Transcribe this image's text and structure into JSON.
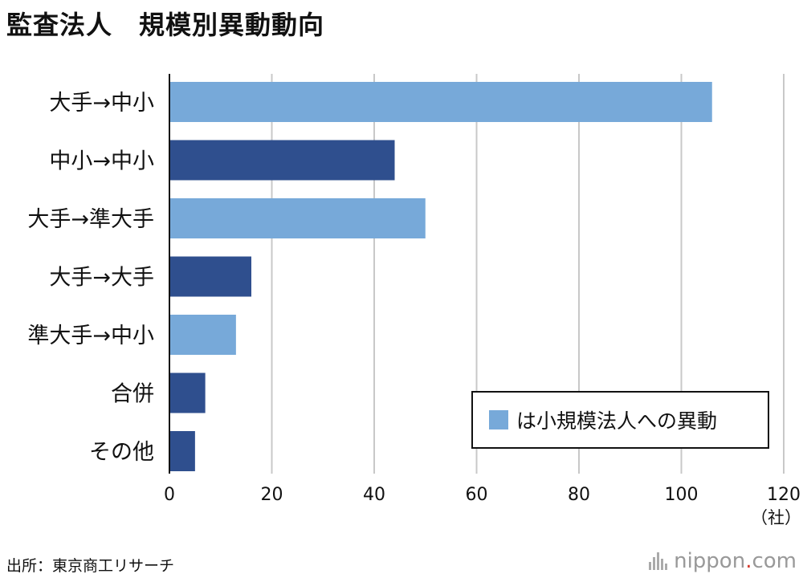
{
  "chart_data": {
    "type": "bar",
    "orientation": "horizontal",
    "title": "監査法人　規模別異動動向",
    "categories": [
      "大手→中小",
      "中小→中小",
      "大手→準大手",
      "大手→大手",
      "準大手→中小",
      "合併",
      "その他"
    ],
    "values": [
      106,
      44,
      50,
      16,
      13,
      7,
      5
    ],
    "to_small_firm": [
      true,
      false,
      true,
      false,
      true,
      false,
      false
    ],
    "colors": {
      "highlight": "#77a9d9",
      "normal": "#2f4f8e"
    },
    "xlim": [
      0,
      120
    ],
    "xticks": [
      0,
      20,
      40,
      60,
      80,
      100,
      120
    ],
    "unit": "（社）",
    "grid": true,
    "legend": {
      "label": "は小規模法人への異動",
      "position": "bottom-right"
    }
  },
  "footer": {
    "source": "出所：東京商工リサーチ",
    "brand_main": "nippon",
    "brand_dot": ".",
    "brand_tld": "com"
  }
}
